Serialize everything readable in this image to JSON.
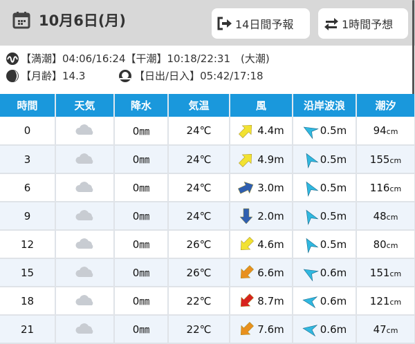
{
  "header": {
    "date": "10月6日(月)",
    "btn_14day": "14日間予報",
    "btn_1hour": "1時間予想"
  },
  "info": {
    "tide_line": "【満潮】04:06/16:24【干潮】10:18/22:31　(大潮)",
    "moon_label": "【月齢】",
    "moon_age": "14.3",
    "sun_line": "【日出/日入】05:42/17:18"
  },
  "table": {
    "headers": [
      "時間",
      "天気",
      "降水",
      "気温",
      "風",
      "沿岸波浪",
      "潮汐"
    ],
    "rows": [
      {
        "time": "0",
        "weather": "cloudy",
        "rain": "0㎜",
        "temp": "24℃",
        "wind": "4.4m",
        "wind_dir_deg": 45,
        "wind_color": "#f2e232",
        "wave": "0.5m",
        "wave_dir_deg": -60,
        "tide": "94",
        "unit": "cm"
      },
      {
        "time": "3",
        "weather": "cloudy",
        "rain": "0㎜",
        "temp": "24℃",
        "wind": "4.9m",
        "wind_dir_deg": 45,
        "wind_color": "#f2e232",
        "wave": "0.5m",
        "wave_dir_deg": -30,
        "tide": "155",
        "unit": "cm"
      },
      {
        "time": "6",
        "weather": "cloudy",
        "rain": "0㎜",
        "temp": "24℃",
        "wind": "3.0m",
        "wind_dir_deg": 65,
        "wind_color": "#2f5fb0",
        "wave": "0.5m",
        "wave_dir_deg": -30,
        "tide": "116",
        "unit": "cm"
      },
      {
        "time": "9",
        "weather": "cloudy",
        "rain": "0㎜",
        "temp": "24℃",
        "wind": "2.0m",
        "wind_dir_deg": 180,
        "wind_color": "#2f5fb0",
        "wave": "0.5m",
        "wave_dir_deg": -30,
        "tide": "48",
        "unit": "cm"
      },
      {
        "time": "12",
        "weather": "cloudy",
        "rain": "0㎜",
        "temp": "26℃",
        "wind": "4.6m",
        "wind_dir_deg": 225,
        "wind_color": "#f2e232",
        "wave": "0.5m",
        "wave_dir_deg": -30,
        "tide": "80",
        "unit": "cm"
      },
      {
        "time": "15",
        "weather": "cloudy",
        "rain": "0㎜",
        "temp": "26℃",
        "wind": "6.6m",
        "wind_dir_deg": 225,
        "wind_color": "#e8901e",
        "wave": "0.6m",
        "wave_dir_deg": -60,
        "tide": "151",
        "unit": "cm"
      },
      {
        "time": "18",
        "weather": "cloudy",
        "rain": "0㎜",
        "temp": "22℃",
        "wind": "8.7m",
        "wind_dir_deg": 225,
        "wind_color": "#d8221e",
        "wave": "0.6m",
        "wave_dir_deg": -80,
        "tide": "121",
        "unit": "cm"
      },
      {
        "time": "21",
        "weather": "cloudy",
        "rain": "0㎜",
        "temp": "22℃",
        "wind": "7.6m",
        "wind_dir_deg": 225,
        "wind_color": "#e8901e",
        "wave": "0.6m",
        "wave_dir_deg": -80,
        "tide": "47",
        "unit": "cm"
      }
    ]
  },
  "colors": {
    "header_blue": "#1a98dc",
    "wave": "#30b8e0"
  }
}
